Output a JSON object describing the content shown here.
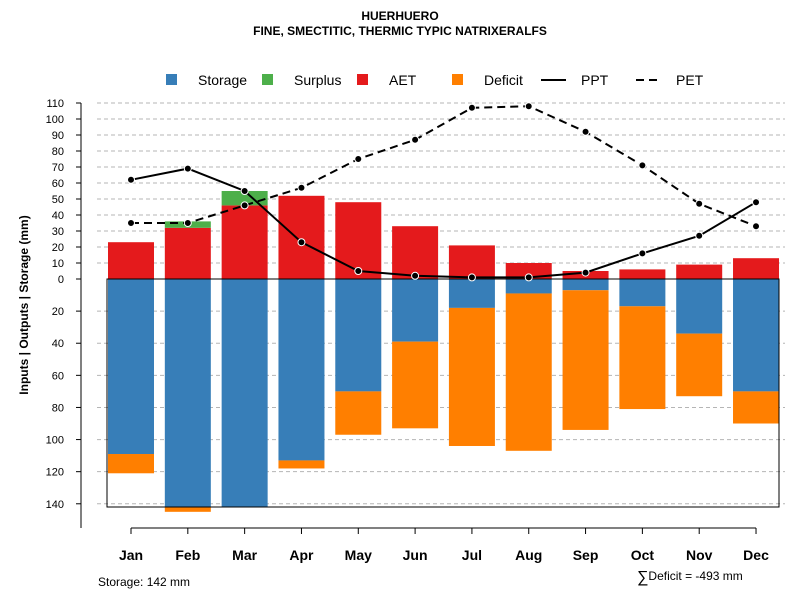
{
  "chart_data": {
    "type": "bar",
    "title": "HUERHUERO",
    "subtitle": "FINE, SMECTITIC, THERMIC TYPIC NATRIXERALFS",
    "ylabel": "Inputs | Outputs | Storage    (mm)",
    "categories": [
      "Jan",
      "Feb",
      "Mar",
      "Apr",
      "May",
      "Jun",
      "Jul",
      "Aug",
      "Sep",
      "Oct",
      "Nov",
      "Dec"
    ],
    "upper_ticks": [
      "110",
      "100",
      "90",
      "80",
      "70",
      "60",
      "50",
      "40",
      "30",
      "20",
      "10",
      "0"
    ],
    "lower_ticks": [
      "20",
      "40",
      "60",
      "80",
      "100",
      "120",
      "140"
    ],
    "upper_ylim": [
      0,
      110
    ],
    "lower_ylim": [
      0,
      142
    ],
    "legend": [
      {
        "label": "Storage",
        "kind": "box",
        "color": "#377EB8"
      },
      {
        "label": "Surplus",
        "kind": "box",
        "color": "#4DAF4A"
      },
      {
        "label": "AET",
        "kind": "box",
        "color": "#E41A1C"
      },
      {
        "label": "Deficit",
        "kind": "box",
        "color": "#FF7F00"
      },
      {
        "label": "PPT",
        "kind": "solid"
      },
      {
        "label": "PET",
        "kind": "dashed"
      }
    ],
    "series": [
      {
        "name": "AET",
        "values": [
          23,
          32,
          46,
          52,
          48,
          33,
          21,
          10,
          5,
          6,
          9,
          13
        ]
      },
      {
        "name": "Surplus",
        "values": [
          0,
          4,
          9,
          0,
          0,
          0,
          0,
          0,
          0,
          0,
          0,
          0
        ]
      },
      {
        "name": "Storage",
        "values": [
          109,
          142,
          142,
          113,
          70,
          39,
          18,
          9,
          7,
          17,
          34,
          70
        ]
      },
      {
        "name": "Deficit",
        "values": [
          12,
          3,
          0,
          5,
          27,
          54,
          86,
          98,
          87,
          64,
          39,
          20
        ]
      },
      {
        "name": "PPT",
        "values": [
          62,
          69,
          55,
          23,
          5,
          2,
          1,
          1,
          4,
          16,
          27,
          48
        ]
      },
      {
        "name": "PET",
        "values": [
          35,
          35,
          46,
          57,
          75,
          87,
          107,
          108,
          92,
          71,
          47,
          33
        ]
      }
    ],
    "storage_label": "Storage: 142 mm",
    "deficit_symbol": "∑",
    "deficit_label": "Deficit = -493 mm"
  }
}
